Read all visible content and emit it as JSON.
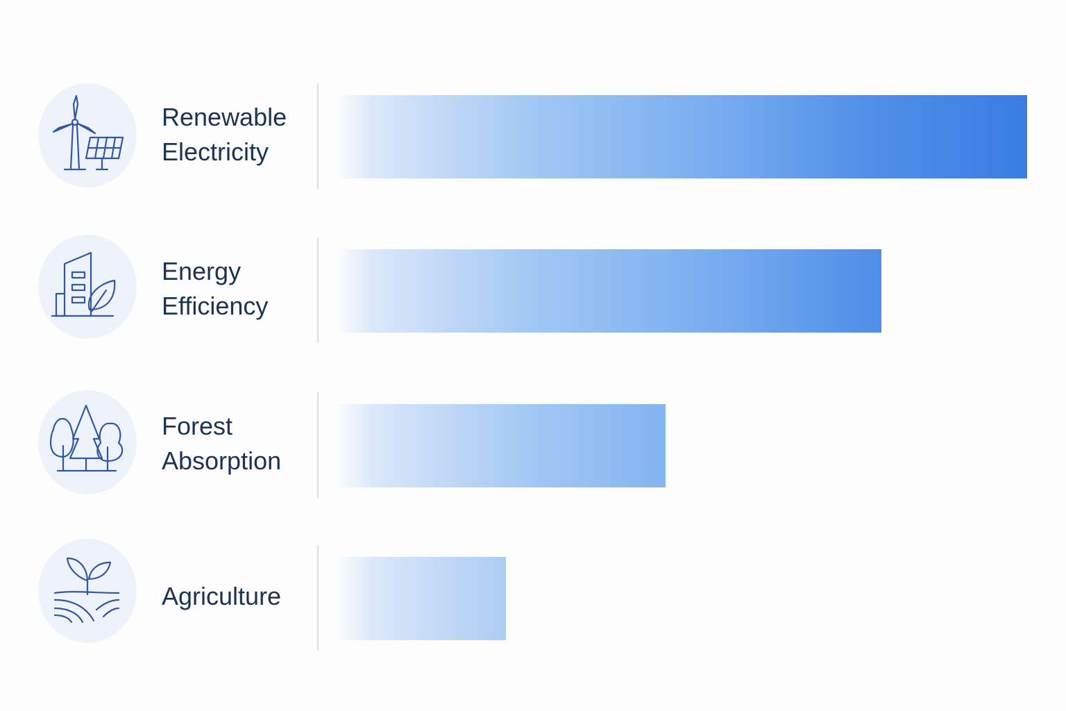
{
  "chart_data": {
    "type": "bar",
    "orientation": "horizontal",
    "categories": [
      "Renewable Electricity",
      "Energy Efficiency",
      "Forest Absorption",
      "Agriculture"
    ],
    "values": [
      100,
      79,
      48,
      25
    ],
    "color": "#3a7de2",
    "xlim": [
      0,
      100
    ]
  }
}
